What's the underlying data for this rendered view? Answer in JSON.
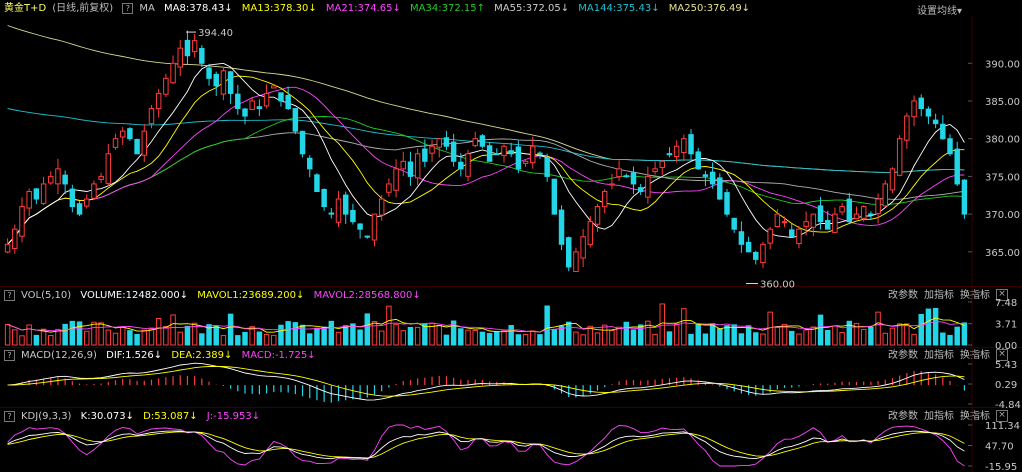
{
  "colors": {
    "up": "#ff3b3b",
    "down": "#22d6e8",
    "ma8": "#ffffff",
    "ma13": "#ffff00",
    "ma21": "#ff44ff",
    "ma34": "#22cc22",
    "ma55": "#b0b0b0",
    "ma144": "#1fc0d0",
    "ma250": "#d8d890",
    "dif": "#ffffff",
    "dea": "#ffff00",
    "k": "#ffffff",
    "d": "#ffff00",
    "j": "#ff44ff"
  },
  "main_header": {
    "symbol": "黄金T+D",
    "period": "(日线,前复权)",
    "q": "?",
    "ma_label": "MA",
    "ma8": "MA8:378.43↓",
    "ma13": "MA13:378.30↓",
    "ma21": "MA21:374.65↓",
    "ma34": "MA34:372.15↑",
    "ma55": "MA55:372.05↓",
    "ma144": "MA144:375.43↓",
    "ma250": "MA250:376.49↓",
    "settings": "设置均线▾"
  },
  "vol_header": {
    "q": "?",
    "name": "VOL(5,10)",
    "volume": "VOLUME:12482.000↓",
    "mavol1": "MAVOL1:23689.200↓",
    "mavol2": "MAVOL2:28568.800↓"
  },
  "macd_header": {
    "q": "?",
    "name": "MACD(12,26,9)",
    "dif": "DIF:1.526↓",
    "dea": "DEA:2.389↓",
    "macd": "MACD:-1.725↓"
  },
  "kdj_header": {
    "q": "?",
    "name": "KDJ(9,3,3)",
    "k": "K:30.073↓",
    "d": "D:53.087↓",
    "j": "J:-15.953↓"
  },
  "panel_links": {
    "change_params": "改参数",
    "add_indicator": "加指标",
    "switch_indicator": "换指标",
    "close": "×"
  },
  "chart_data": [
    {
      "type": "candlestick",
      "y_ticks": [
        "390.00",
        "385.00",
        "380.00",
        "375.00",
        "370.00",
        "365.00"
      ],
      "ylim": [
        361,
        396
      ],
      "annotations": [
        {
          "text": "394.40",
          "value": 394.4
        },
        {
          "text": "360.00",
          "value": 360.0
        }
      ],
      "closes": [
        366,
        368,
        371,
        373,
        372,
        374,
        375,
        376,
        374,
        371,
        370,
        372,
        374,
        375,
        378,
        380,
        381,
        380,
        378,
        381,
        384,
        386,
        388,
        390,
        392,
        391,
        393,
        390,
        388,
        387,
        389,
        386,
        384,
        383,
        385,
        384,
        386,
        387,
        385,
        384,
        381,
        378,
        376,
        373,
        371,
        370,
        372,
        370,
        369,
        368,
        367,
        370,
        372,
        374,
        376,
        377,
        375,
        378,
        377,
        379,
        380,
        379,
        377,
        376,
        378,
        380,
        379,
        377,
        378,
        379,
        378,
        376,
        377,
        379,
        378,
        375,
        370,
        366,
        363,
        365,
        367,
        369,
        371,
        373,
        374,
        376,
        375,
        374,
        373,
        375,
        376,
        377,
        378,
        379,
        380,
        378,
        376,
        375,
        374,
        372,
        370,
        368,
        366,
        365,
        364,
        366,
        368,
        370,
        369,
        367,
        368,
        369,
        370,
        369,
        368,
        370,
        371,
        369,
        370,
        371,
        370,
        372,
        374,
        376,
        380,
        383,
        385,
        384,
        383,
        382,
        380,
        378,
        374,
        370
      ]
    },
    {
      "type": "bar",
      "name": "VOL",
      "y_ticks": [
        "7.48",
        "3.71",
        "0.00"
      ]
    },
    {
      "type": "bar",
      "name": "MACD",
      "y_ticks": [
        "5.43",
        "0.29",
        "-4.84"
      ]
    },
    {
      "type": "line",
      "name": "KDJ",
      "y_ticks": [
        "111.34",
        "47.70",
        "-15.95"
      ]
    }
  ]
}
